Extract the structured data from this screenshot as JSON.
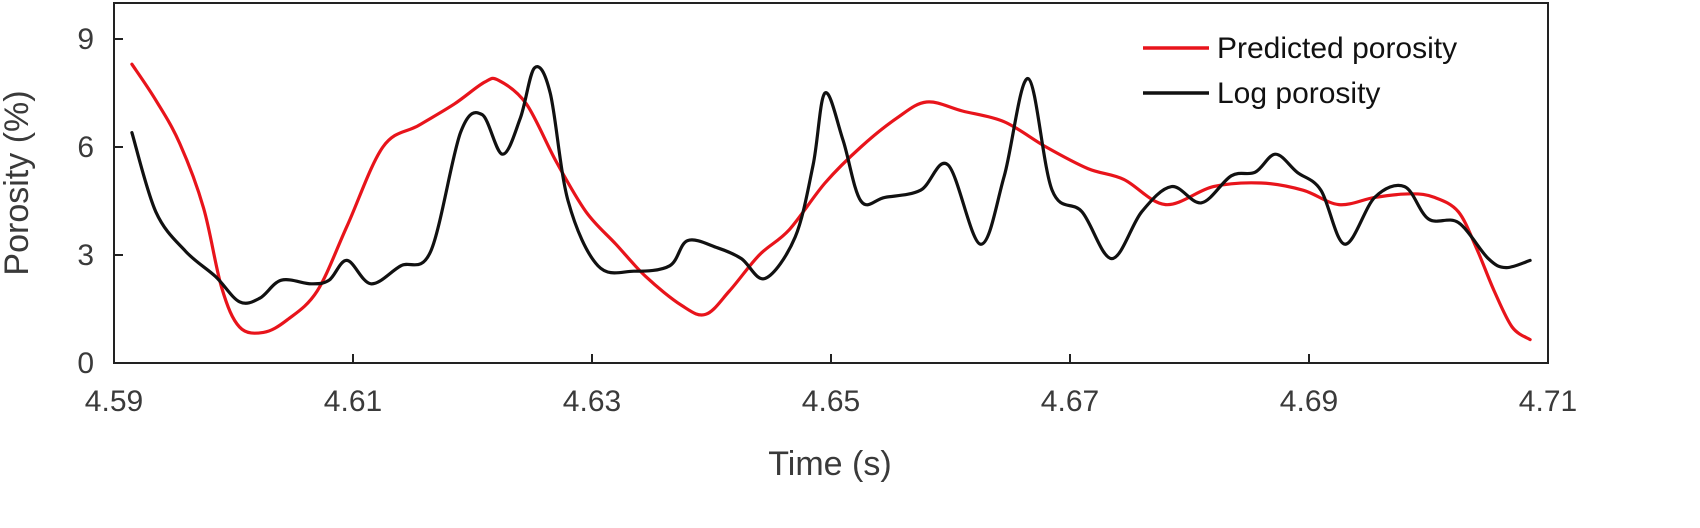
{
  "chart_data": {
    "type": "line",
    "xlabel": "Time (s)",
    "ylabel": "Porosity (%)",
    "xlim": [
      4.59,
      4.71
    ],
    "ylim": [
      0,
      10
    ],
    "xticks": [
      4.59,
      4.61,
      4.63,
      4.65,
      4.67,
      4.69,
      4.71
    ],
    "xtick_labels": [
      "4.59",
      "4.61",
      "4.63",
      "4.65",
      "4.67",
      "4.69",
      "4.71"
    ],
    "yticks": [
      0,
      3,
      6,
      9
    ],
    "ytick_labels": [
      "0",
      "3",
      "6",
      "9"
    ],
    "grid": false,
    "legend_position": "top-right",
    "series": [
      {
        "name": "Predicted porosity",
        "color": "#e8141b",
        "x": [
          4.5915,
          4.5935,
          4.5955,
          4.5975,
          4.599,
          4.6005,
          4.6025,
          4.6045,
          4.607,
          4.6095,
          4.6125,
          4.6155,
          4.6185,
          4.621,
          4.6222,
          4.6245,
          4.627,
          4.6295,
          4.632,
          4.6345,
          4.6375,
          4.6395,
          4.6415,
          4.644,
          4.6465,
          4.6495,
          4.6525,
          4.6555,
          4.658,
          4.661,
          4.6645,
          4.668,
          4.6715,
          4.6745,
          4.678,
          4.682,
          4.686,
          4.6895,
          4.6925,
          4.6955,
          4.6985,
          4.7005,
          4.7025,
          4.704,
          4.7055,
          4.707,
          4.7085
        ],
        "y": [
          8.3,
          7.3,
          6.1,
          4.3,
          2.1,
          1.0,
          0.85,
          1.2,
          2.0,
          3.8,
          6.0,
          6.6,
          7.2,
          7.8,
          7.85,
          7.2,
          5.6,
          4.2,
          3.3,
          2.4,
          1.6,
          1.35,
          2.0,
          3.0,
          3.7,
          5.0,
          6.0,
          6.8,
          7.25,
          7.0,
          6.7,
          6.0,
          5.4,
          5.1,
          4.4,
          4.9,
          5.0,
          4.8,
          4.4,
          4.6,
          4.7,
          4.6,
          4.2,
          3.2,
          2.0,
          1.0,
          0.65
        ]
      },
      {
        "name": "Log porosity",
        "color": "#111111",
        "x": [
          4.5915,
          4.5935,
          4.596,
          4.5985,
          4.6005,
          4.6022,
          4.604,
          4.6065,
          4.608,
          4.6095,
          4.6115,
          4.614,
          4.6165,
          4.619,
          4.6208,
          4.6225,
          4.624,
          4.6252,
          4.6265,
          4.628,
          4.6305,
          4.6335,
          4.6365,
          4.638,
          4.6405,
          4.6425,
          4.6445,
          4.647,
          4.6485,
          4.6495,
          4.651,
          4.6525,
          4.6545,
          4.6575,
          4.6598,
          4.6625,
          4.6645,
          4.6665,
          4.6685,
          4.671,
          4.6735,
          4.676,
          4.6785,
          4.681,
          4.6835,
          4.6855,
          4.6872,
          4.689,
          4.691,
          4.693,
          4.6955,
          4.698,
          4.7,
          4.7025,
          4.705,
          4.7065,
          4.7085
        ],
        "y": [
          6.4,
          4.2,
          3.1,
          2.4,
          1.7,
          1.8,
          2.3,
          2.2,
          2.3,
          2.85,
          2.2,
          2.7,
          3.1,
          6.4,
          6.9,
          5.8,
          6.8,
          8.2,
          7.5,
          4.5,
          2.7,
          2.55,
          2.7,
          3.4,
          3.2,
          2.9,
          2.35,
          3.5,
          5.5,
          7.5,
          6.2,
          4.5,
          4.6,
          4.8,
          5.5,
          3.3,
          5.2,
          7.9,
          4.8,
          4.2,
          2.9,
          4.2,
          4.9,
          4.45,
          5.2,
          5.3,
          5.8,
          5.3,
          4.8,
          3.3,
          4.6,
          4.9,
          4.0,
          3.9,
          2.9,
          2.65,
          2.85
        ]
      }
    ]
  }
}
